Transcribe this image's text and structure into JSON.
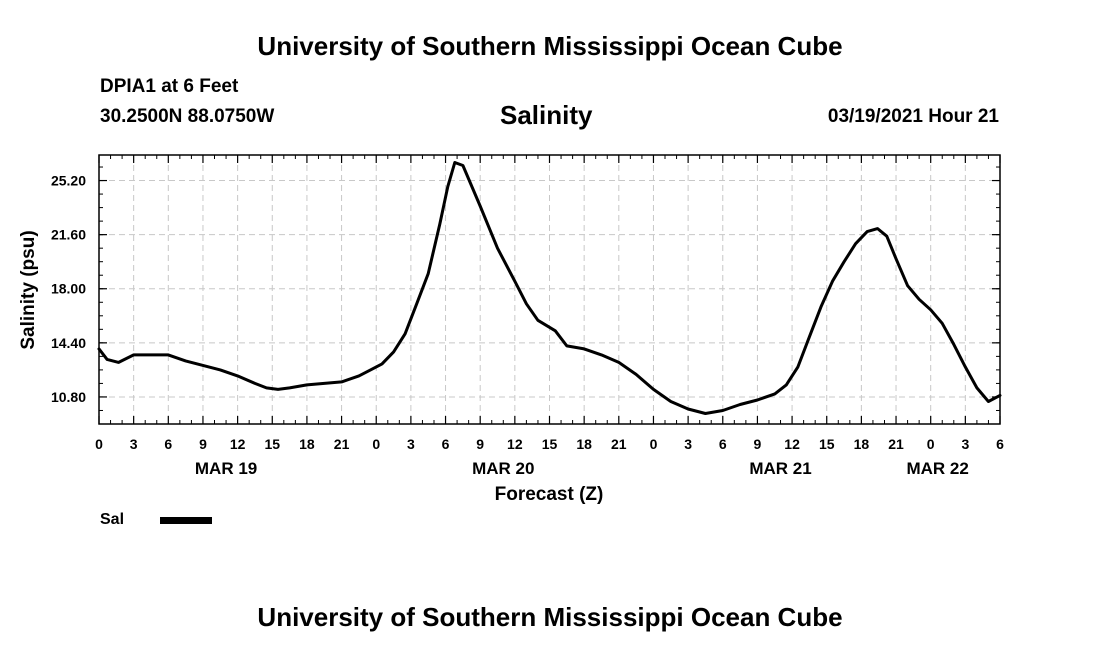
{
  "header": {
    "title": "University of Southern Mississippi Ocean Cube",
    "station": "DPIA1 at 6 Feet",
    "coords": "30.2500N 88.0750W",
    "timestamp": "03/19/2021 Hour 21"
  },
  "footer": {
    "title": "University of Southern Mississippi Ocean Cube"
  },
  "chart_data": {
    "type": "line",
    "title": "Salinity",
    "xlabel": "Forecast (Z)",
    "ylabel": "Salinity (psu)",
    "x_unit": "hours from MAR 19 00Z",
    "xlim": [
      0,
      78
    ],
    "ylim": [
      9.0,
      26.9
    ],
    "grid": true,
    "y_ticks": [
      "10.80",
      "14.40",
      "18.00",
      "21.60",
      "25.20"
    ],
    "x_ticks": [
      "0",
      "3",
      "6",
      "9",
      "12",
      "15",
      "18",
      "21",
      "0",
      "3",
      "6",
      "9",
      "12",
      "15",
      "18",
      "21",
      "0",
      "3",
      "6",
      "9",
      "12",
      "15",
      "18",
      "21",
      "0",
      "3",
      "6"
    ],
    "date_labels": [
      {
        "label": "MAR 19",
        "hour": 11
      },
      {
        "label": "MAR 20",
        "hour": 35
      },
      {
        "label": "MAR 21",
        "hour": 59
      },
      {
        "label": "MAR 22",
        "hour": 72.6
      }
    ],
    "legend": [
      {
        "label": "Sal",
        "color": "#000000"
      }
    ],
    "series": [
      {
        "name": "Sal",
        "x": [
          0,
          0.7,
          1.7,
          3,
          4.5,
          6,
          7.5,
          9,
          10.5,
          12,
          13.5,
          14.5,
          15.5,
          16.5,
          18,
          19.5,
          21,
          22.5,
          23.5,
          24.5,
          25.5,
          26.5,
          27.5,
          28.5,
          29.5,
          30.2,
          30.8,
          31.5,
          33,
          34.5,
          36,
          37,
          38,
          39.5,
          40.5,
          42,
          43.5,
          45,
          46.5,
          48,
          49.5,
          51,
          52.5,
          54,
          55.5,
          57,
          58.5,
          59.5,
          60.5,
          61.5,
          62.5,
          63.5,
          64.5,
          65.5,
          66.5,
          67.4,
          68.2,
          69,
          70,
          71,
          72,
          73,
          74,
          75,
          76,
          77,
          78
        ],
        "y": [
          14.0,
          13.3,
          13.1,
          13.6,
          13.6,
          13.6,
          13.2,
          12.9,
          12.6,
          12.2,
          11.7,
          11.4,
          11.3,
          11.4,
          11.6,
          11.7,
          11.8,
          12.2,
          12.6,
          13.0,
          13.8,
          15.0,
          17.0,
          19.0,
          22.3,
          24.8,
          26.4,
          26.2,
          23.5,
          20.7,
          18.5,
          17.0,
          15.9,
          15.2,
          14.2,
          14.0,
          13.6,
          13.1,
          12.3,
          11.3,
          10.5,
          10.0,
          9.7,
          9.9,
          10.3,
          10.6,
          11.0,
          11.6,
          12.8,
          14.8,
          16.8,
          18.5,
          19.8,
          21.0,
          21.8,
          22.0,
          21.5,
          20.0,
          18.2,
          17.3,
          16.6,
          15.7,
          14.3,
          12.8,
          11.4,
          10.5,
          10.9
        ],
        "color": "#000000"
      }
    ]
  }
}
